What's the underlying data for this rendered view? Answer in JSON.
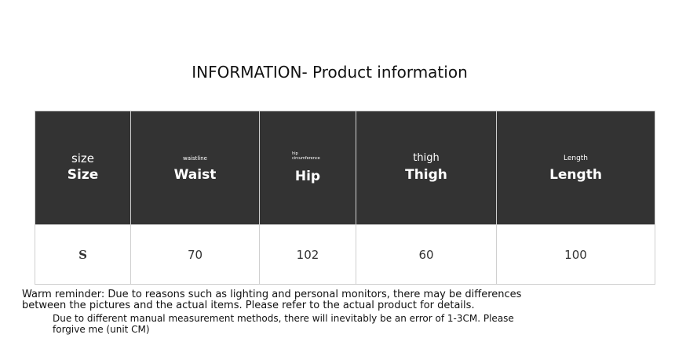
{
  "title": "INFORMATION- Product information",
  "columns": [
    {
      "sub": "size",
      "label": "Size"
    },
    {
      "sub": "waistline",
      "label": "Waist"
    },
    {
      "sub": "hip circumference",
      "label": "Hip"
    },
    {
      "sub": "thigh",
      "label": "Thigh"
    },
    {
      "sub": "Length",
      "label": "Length"
    }
  ],
  "rows": [
    [
      "S",
      "70",
      "102",
      "60",
      "100"
    ]
  ],
  "notes": {
    "reminder": "Warm reminder: Due to reasons such as lighting and personal monitors, there may be differences between the pictures and the actual items. Please refer to the actual product for details.",
    "measurement": "Due to different manual measurement methods, there will inevitably be an error of 1-3CM. Please forgive me (unit CM)"
  }
}
